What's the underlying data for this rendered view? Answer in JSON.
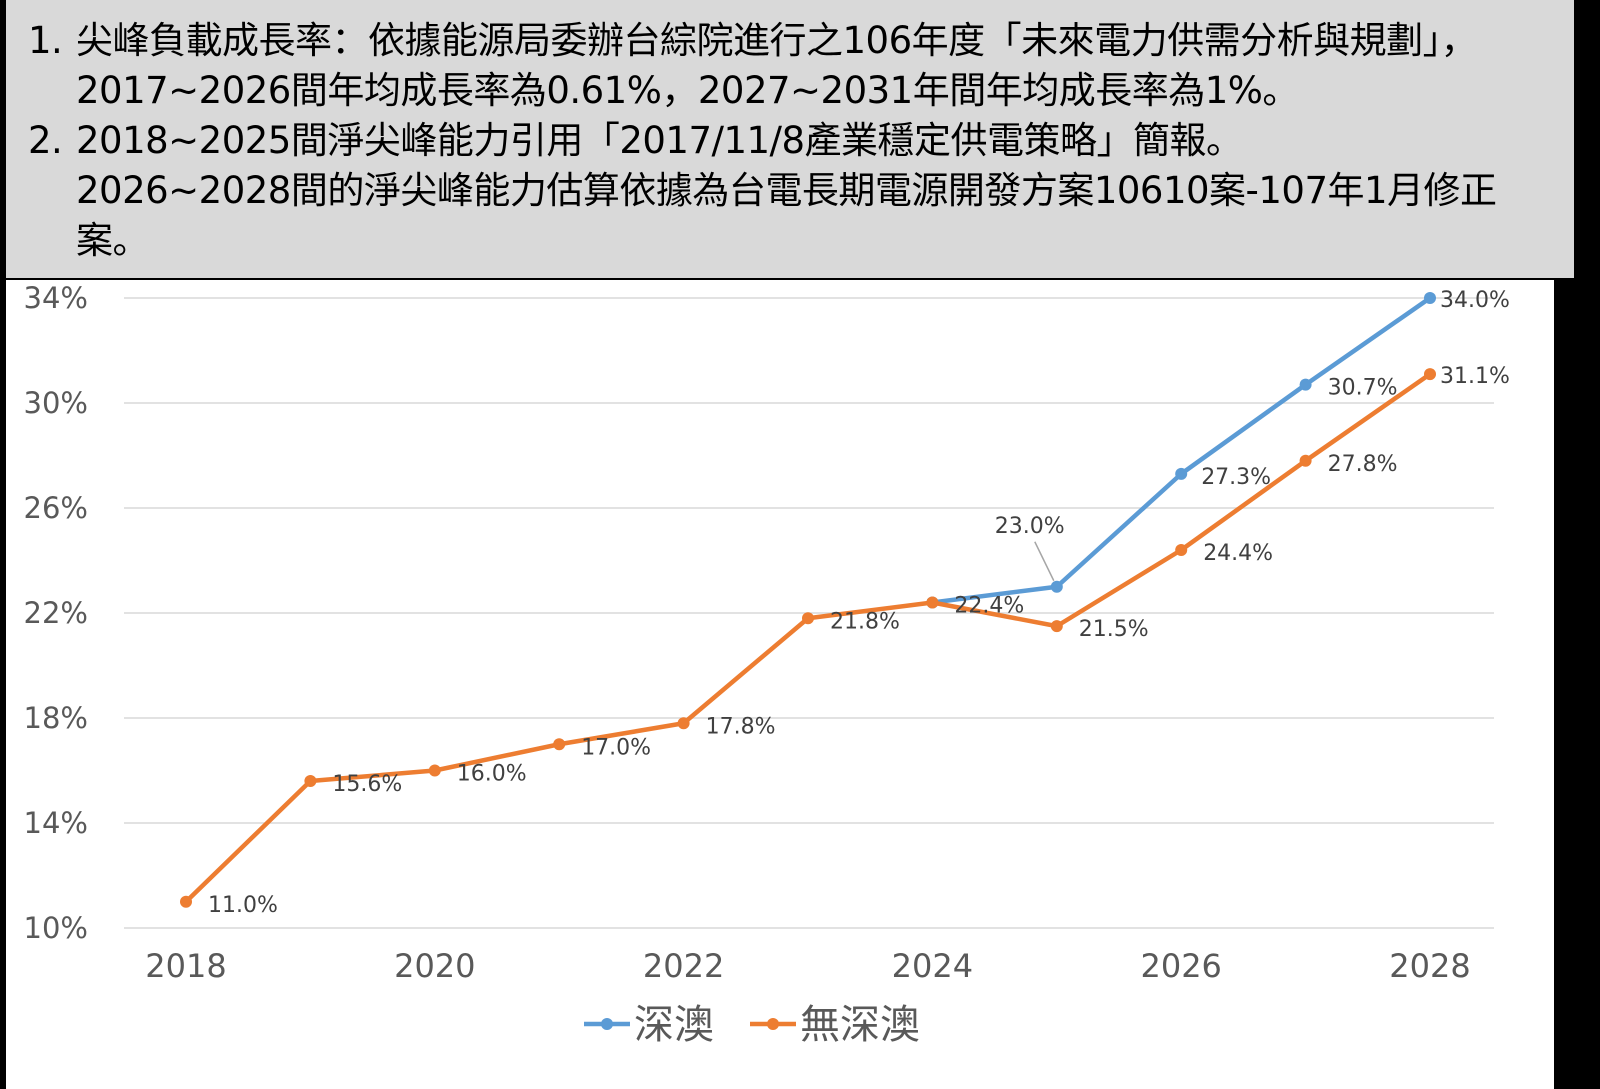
{
  "notes": [
    {
      "number": "1.",
      "text": "尖峰負載成長率：依據能源局委辦台綜院進行之106年度「未來電力供需分析與規劃」，2017~2026間年均成長率為0.61%，2027~2031年間年均成長率為1%。"
    },
    {
      "number": "2.",
      "text": "2018~2025間淨尖峰能力引用「2017/11/8產業穩定供電策略」簡報。\n2026~2028間的淨尖峰能力估算依據為台電長期電源開發方案10610案-107年1月修正案。"
    }
  ],
  "chart_data": {
    "type": "line",
    "x": [
      2018,
      2019,
      2020,
      2021,
      2022,
      2023,
      2024,
      2025,
      2026,
      2027,
      2028
    ],
    "x_tick_labels": [
      "2018",
      "2020",
      "2022",
      "2024",
      "2026",
      "2028"
    ],
    "y_tick_labels": [
      "10%",
      "14%",
      "18%",
      "22%",
      "26%",
      "30%",
      "34%"
    ],
    "ylim": [
      10,
      34
    ],
    "grid": true,
    "legend_position": "bottom",
    "series": [
      {
        "name": "深澳",
        "color": "#5b9bd5",
        "x": [
          2024,
          2025,
          2026,
          2027,
          2028
        ],
        "values": [
          22.4,
          23.0,
          27.3,
          30.7,
          34.0
        ],
        "labels": [
          "",
          "23.0%",
          "27.3%",
          "30.7%",
          "34.0%"
        ]
      },
      {
        "name": "無深澳",
        "color": "#ed7d31",
        "x": [
          2018,
          2019,
          2020,
          2021,
          2022,
          2023,
          2024,
          2025,
          2026,
          2027,
          2028
        ],
        "values": [
          11.0,
          15.6,
          16.0,
          17.0,
          17.8,
          21.8,
          22.4,
          21.5,
          24.4,
          27.8,
          31.1
        ],
        "labels": [
          "11.0%",
          "15.6%",
          "16.0%",
          "17.0%",
          "17.8%",
          "21.8%",
          "22.4%",
          "21.5%",
          "24.4%",
          "27.8%",
          "31.1%"
        ]
      }
    ]
  }
}
